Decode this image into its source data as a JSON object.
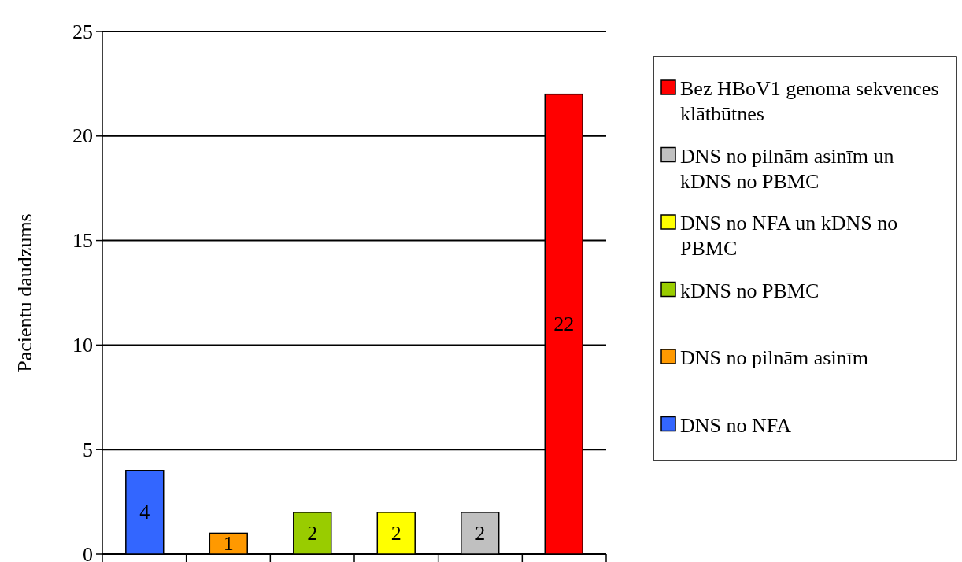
{
  "chart_data": {
    "type": "bar",
    "ylabel": "Pacientu daudzums",
    "categories": [
      null,
      null,
      null,
      null,
      null,
      null
    ],
    "series": [
      {
        "name": "DNS no NFA",
        "color": "#3366ff",
        "values": [
          4,
          null,
          null,
          null,
          null,
          null
        ]
      },
      {
        "name": "DNS no pilnām asinīm",
        "color": "#ff9900",
        "values": [
          null,
          1,
          null,
          null,
          null,
          null
        ]
      },
      {
        "name": "kDNS no PBMC",
        "color": "#99cc00",
        "values": [
          null,
          null,
          2,
          null,
          null,
          null
        ]
      },
      {
        "name": "DNS no NFA un kDNS no PBMC",
        "color": "#ffff00",
        "values": [
          null,
          null,
          null,
          2,
          null,
          null
        ]
      },
      {
        "name": "DNS no pilnām asinīm un kDNS no PBMC",
        "color": "#c0c0c0",
        "values": [
          null,
          null,
          null,
          null,
          2,
          null
        ]
      },
      {
        "name": "Bez HBoV1 genoma sekvences klātbūtnes",
        "color": "#ff0000",
        "values": [
          null,
          null,
          null,
          null,
          null,
          22
        ]
      }
    ],
    "ylim": [
      0,
      25
    ],
    "yticks": [
      0,
      5,
      10,
      15,
      20,
      25
    ],
    "grid": "y",
    "legend": "right",
    "data_labels": true
  }
}
